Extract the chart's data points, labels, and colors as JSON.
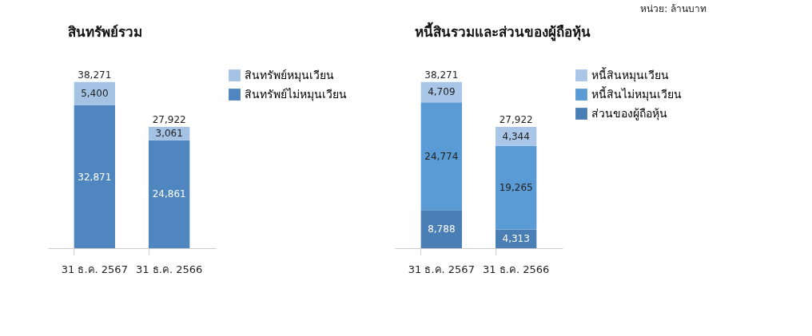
{
  "chart_data": [
    {
      "type": "bar",
      "title": "สินทรัพย์รวม",
      "stacked": true,
      "legend": "right",
      "categories": [
        "31 ธ.ค. 2567",
        "31 ธ.ค. 2566"
      ],
      "series": [
        {
          "name": "สินทรัพย์ไม่หมุนเวียน",
          "color": "#4f86bf",
          "values": [
            32871,
            24861
          ],
          "value_labels": [
            "32,871",
            "24,861"
          ]
        },
        {
          "name": "สินทรัพย์หมุนเวียน",
          "color": "#a4c2e4",
          "values": [
            5400,
            3061
          ],
          "value_labels": [
            "5,400",
            "3,061"
          ]
        }
      ],
      "totals": [
        "38,271",
        "27,922"
      ]
    },
    {
      "type": "bar",
      "title": "หนี้สินรวมและส่วนของผู้ถือหุ้น",
      "stacked": true,
      "legend": "right",
      "categories": [
        "31 ธ.ค. 2567",
        "31 ธ.ค. 2566"
      ],
      "series": [
        {
          "name": "ส่วนของผู้ถือหุ้น",
          "color": "#4a7fb5",
          "values": [
            8788,
            4313
          ],
          "value_labels": [
            "8,788",
            "4,313"
          ]
        },
        {
          "name": "หนี้สินไม่หมุนเวียน",
          "color": "#5b9bd5",
          "values": [
            24774,
            19265
          ],
          "value_labels": [
            "24,774",
            "19,265"
          ]
        },
        {
          "name": "หนี้สินหมุนเวียน",
          "color": "#a9c6e8",
          "values": [
            4709,
            4344
          ],
          "value_labels": [
            "4,709",
            "4,344"
          ]
        }
      ],
      "totals": [
        "38,271",
        "27,922"
      ],
      "annotations": [
        "หน่วย: ล้านบาท"
      ]
    }
  ]
}
